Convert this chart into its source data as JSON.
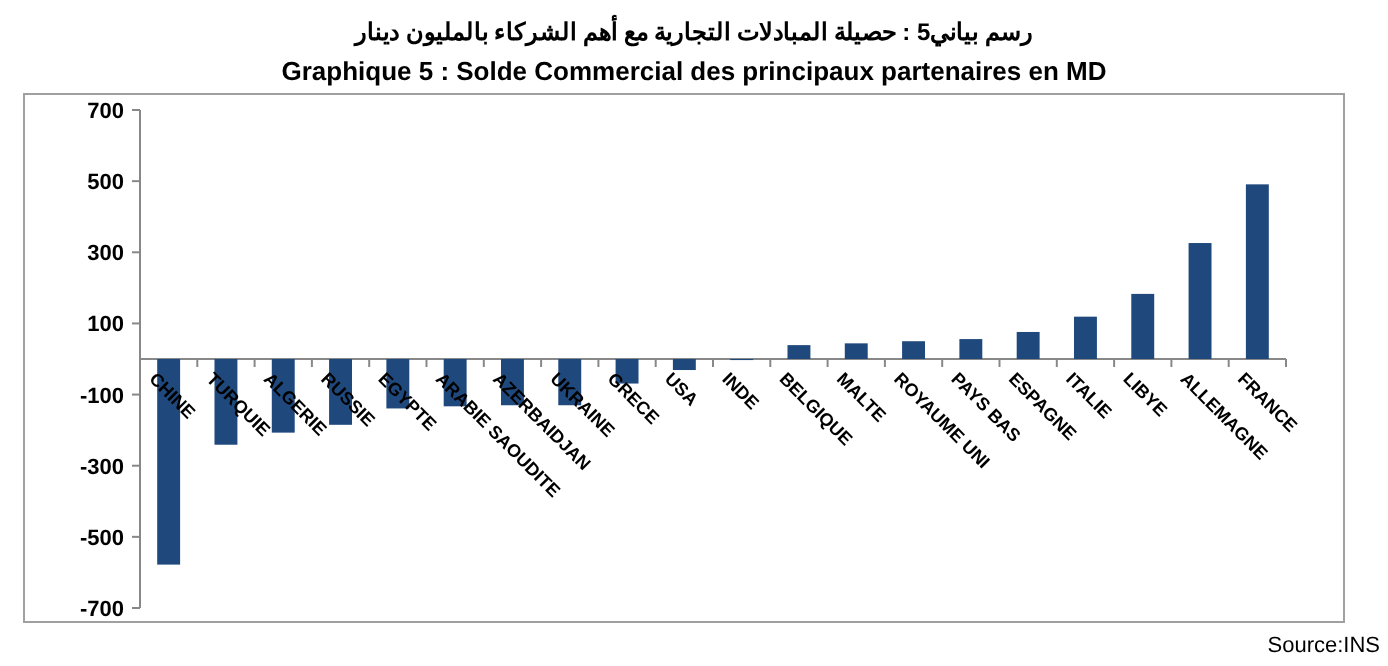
{
  "chart_data": {
    "type": "bar",
    "title": "رسم بياني5 : حصيلة المبادلات التجارية مع أهم الشركاء بالمليون دينار",
    "subtitle": "Graphique 5 : Solde Commercial des principaux partenaires en MD",
    "categories": [
      "CHINE",
      "TURQUIE",
      "ALGERIE",
      "RUSSIE",
      "EGYPTE",
      "ARABIE SAOUDITE",
      "AZERBAIDJAN",
      "UKRAINE",
      "GRECE",
      "USA",
      "INDE",
      "BELGIQUE",
      "MALTE",
      "ROYAUME UNI",
      "PAYS BAS",
      "ESPAGNE",
      "ITALIE",
      "LIBYE",
      "ALLEMAGNE",
      "FRANCE"
    ],
    "values": [
      -578,
      -241,
      -207,
      -185,
      -139,
      -133,
      -130,
      -130,
      -69,
      -31,
      -3,
      39,
      44,
      50,
      56,
      76,
      119,
      183,
      326,
      491
    ],
    "color": "#1f497d",
    "ylim": [
      -700,
      700
    ],
    "yticks": [
      -700,
      -500,
      -300,
      -100,
      100,
      300,
      500,
      700
    ],
    "grid": false,
    "annotations": [
      "Source:INS"
    ]
  }
}
